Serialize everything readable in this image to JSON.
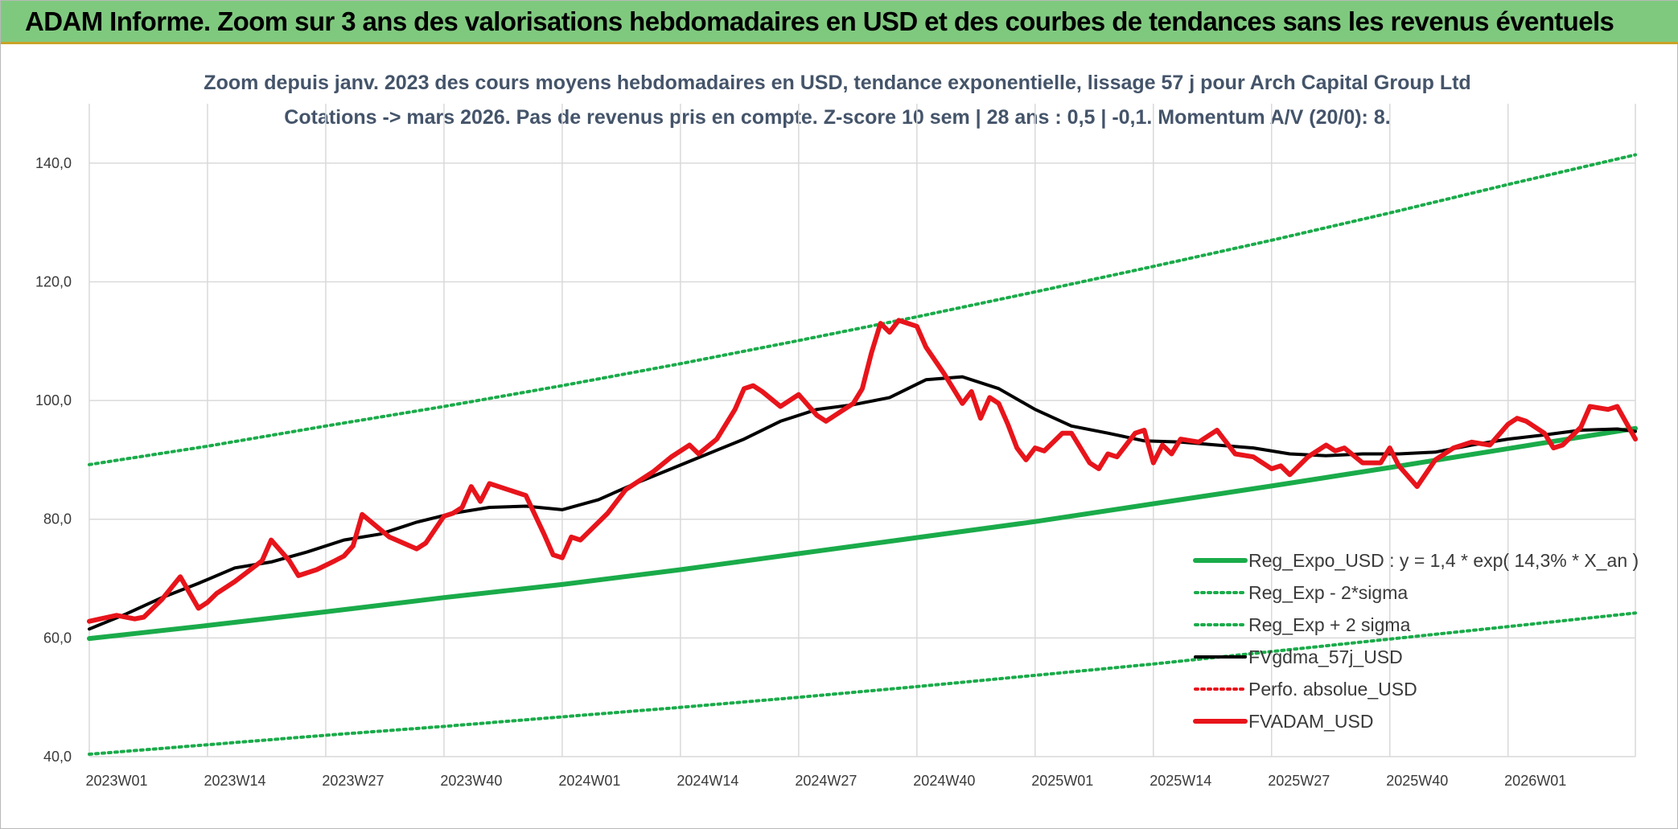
{
  "banner": {
    "title": "ADAM Informe. Zoom sur 3 ans des valorisations hebdomadaires en USD et des courbes de tendances sans les revenus éventuels"
  },
  "colors": {
    "banner_bg": "#7fc97f",
    "trend": "#1aab4a",
    "smooth": "#000000",
    "price": "#e8141b",
    "perf": "#e8141b",
    "grid": "#d9d9d9"
  },
  "chart_data": {
    "type": "line",
    "title": "Zoom depuis janv. 2023 des cours moyens hebdomadaires en USD, tendance exponentielle, lissage 57 j pour Arch Capital Group Ltd",
    "subtitle": "Cotations -> mars 2026. Pas de revenus pris en compte. Z-score 10 sem | 28 ans : 0,5 | -0,1. Momentum A/V (20/0): 8.",
    "ylim": [
      40,
      150
    ],
    "yticks": [
      "40,0",
      "60,0",
      "80,0",
      "100,0",
      "120,0",
      "140,0"
    ],
    "x_tick_labels": [
      "2023W01",
      "2023W14",
      "2023W27",
      "2023W40",
      "2024W01",
      "2024W14",
      "2024W27",
      "2024W40",
      "2025W01",
      "2025W14",
      "2025W27",
      "2025W40",
      "2026W01"
    ],
    "x_tick_week_index": [
      0,
      13,
      26,
      39,
      52,
      65,
      78,
      91,
      104,
      117,
      130,
      143,
      156
    ],
    "x_range_weeks": [
      0,
      170
    ],
    "grid": true,
    "legend_position": "right",
    "series": [
      {
        "name": "Reg_Expo_USD : y = 1,4 * exp( 14,3% *  X_an )",
        "style": "solid-thick",
        "color": "#1aab4a",
        "x": [
          0,
          13,
          26,
          39,
          52,
          65,
          78,
          91,
          104,
          117,
          130,
          143,
          156,
          170
        ],
        "values": [
          59.9,
          62.1,
          64.4,
          66.8,
          69.0,
          71.5,
          74.2,
          76.9,
          79.6,
          82.6,
          85.6,
          88.7,
          91.9,
          95.3
        ]
      },
      {
        "name": "Reg_Exp - 2*sigma",
        "style": "dotted",
        "color": "#1aab4a",
        "x": [
          0,
          13,
          26,
          39,
          52,
          65,
          78,
          91,
          104,
          117,
          130,
          143,
          156,
          170
        ],
        "values": [
          40.4,
          42.0,
          43.6,
          45.1,
          46.7,
          48.3,
          50.0,
          51.8,
          53.7,
          55.6,
          57.7,
          59.8,
          61.9,
          64.2
        ]
      },
      {
        "name": "Reg_Exp + 2 sigma",
        "style": "dotted",
        "color": "#1aab4a",
        "x": [
          0,
          13,
          26,
          39,
          52,
          65,
          78,
          91,
          104,
          117,
          130,
          143,
          156,
          170
        ],
        "values": [
          89.2,
          92.3,
          95.7,
          99.0,
          102.5,
          106.2,
          110.1,
          114.1,
          118.3,
          122.6,
          127.0,
          131.6,
          136.4,
          141.4
        ]
      },
      {
        "name": "FVgdma_57j_USD",
        "style": "solid",
        "color": "#000000",
        "x": [
          0,
          4,
          8,
          12,
          16,
          20,
          24,
          28,
          32,
          36,
          40,
          44,
          48,
          52,
          56,
          60,
          64,
          68,
          72,
          76,
          80,
          84,
          88,
          92,
          96,
          100,
          104,
          108,
          112,
          116,
          120,
          124,
          128,
          132,
          136,
          140,
          144,
          148,
          152,
          156,
          160,
          164,
          168,
          170
        ],
        "values": [
          61.5,
          64.0,
          66.8,
          69.2,
          71.8,
          72.8,
          74.5,
          76.5,
          77.5,
          79.5,
          81.0,
          82.0,
          82.2,
          81.6,
          83.3,
          86.0,
          88.5,
          91.0,
          93.5,
          96.5,
          98.5,
          99.3,
          100.5,
          103.5,
          104.0,
          102.0,
          98.5,
          95.7,
          94.5,
          93.2,
          93.0,
          92.5,
          92.0,
          91.0,
          90.7,
          91.0,
          91.0,
          91.3,
          92.5,
          93.5,
          94.2,
          95.0,
          95.2,
          94.8
        ]
      },
      {
        "name": "Perfo. absolue_USD",
        "style": "dotted",
        "color": "#e8141b",
        "x": [],
        "values": []
      },
      {
        "name": "FVADAM_USD",
        "style": "solid-thick",
        "color": "#e8141b",
        "x": [
          0,
          3,
          5,
          6,
          8,
          10,
          12,
          13,
          14,
          16,
          19,
          20,
          22,
          23,
          25,
          27,
          28,
          29,
          30,
          33,
          36,
          37,
          39,
          40,
          41,
          42,
          43,
          44,
          46,
          48,
          50,
          51,
          52,
          53,
          54,
          57,
          59,
          60,
          62,
          64,
          66,
          67,
          69,
          71,
          72,
          73,
          74,
          76,
          78,
          80,
          81,
          82,
          84,
          85,
          86,
          87,
          88,
          89,
          90,
          91,
          92,
          94,
          96,
          97,
          98,
          99,
          100,
          101,
          102,
          103,
          104,
          105,
          106,
          107,
          108,
          110,
          111,
          112,
          113,
          114,
          115,
          116,
          117,
          118,
          119,
          120,
          122,
          124,
          126,
          128,
          130,
          131,
          132,
          133,
          134,
          136,
          137,
          138,
          140,
          142,
          143,
          144,
          146,
          148,
          150,
          152,
          154,
          156,
          157,
          158,
          160,
          161,
          162,
          164,
          165,
          167,
          168,
          170
        ],
        "values": [
          62.8,
          63.8,
          63.2,
          63.5,
          66.5,
          70.3,
          65.0,
          66.0,
          67.5,
          69.5,
          73.0,
          76.5,
          73.0,
          70.5,
          71.5,
          73.0,
          73.8,
          75.5,
          80.8,
          77.0,
          75.0,
          76.0,
          80.5,
          81.0,
          82.0,
          85.5,
          83.0,
          86.0,
          85.0,
          84.0,
          77.5,
          74.0,
          73.5,
          77.0,
          76.5,
          81.0,
          85.0,
          86.0,
          88.0,
          90.5,
          92.5,
          91.0,
          93.5,
          98.5,
          102.0,
          102.5,
          101.5,
          99.0,
          101.0,
          97.5,
          96.5,
          97.5,
          99.5,
          102.0,
          108.0,
          113.0,
          111.5,
          113.5,
          113.0,
          112.5,
          109.0,
          104.5,
          99.5,
          101.5,
          97.0,
          100.5,
          99.5,
          96.0,
          92.0,
          90.0,
          92.0,
          91.5,
          93.0,
          94.5,
          94.5,
          89.5,
          88.5,
          91.0,
          90.5,
          92.5,
          94.5,
          95.0,
          89.5,
          92.5,
          91.0,
          93.5,
          93.0,
          95.0,
          91.0,
          90.5,
          88.5,
          89.0,
          87.5,
          89.0,
          90.5,
          92.5,
          91.5,
          92.0,
          89.5,
          89.5,
          92.0,
          89.0,
          85.5,
          90.0,
          92.0,
          93.0,
          92.5,
          96.0,
          97.0,
          96.5,
          94.5,
          92.0,
          92.5,
          95.5,
          99.0,
          98.5,
          99.0,
          93.5
        ]
      }
    ]
  }
}
